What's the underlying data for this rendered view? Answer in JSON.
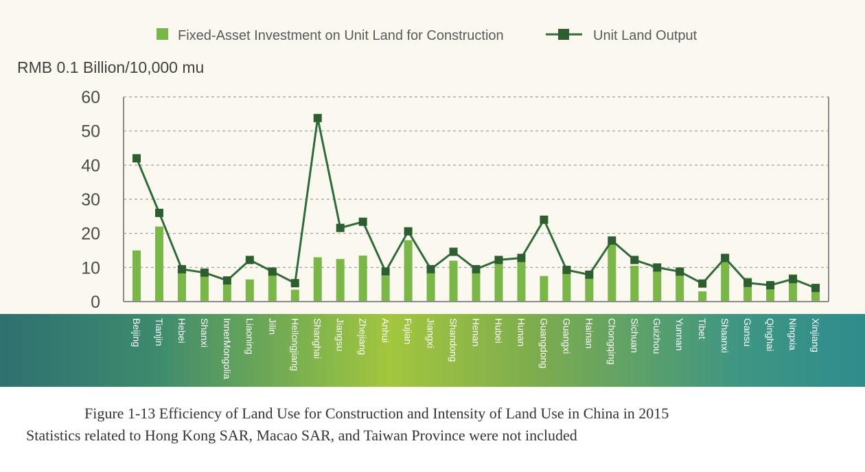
{
  "chart_data": {
    "type": "bar+line",
    "unit_label": "RMB 0.1 Billion/10,000 mu",
    "ylim": [
      0,
      60
    ],
    "yticks": [
      "0",
      "10",
      "20",
      "30",
      "40",
      "50",
      "60"
    ],
    "grid": true,
    "legend": {
      "bar": "Fixed-Asset Investment on Unit Land for Construction",
      "line": "Unit Land Output"
    },
    "categories": [
      "Beijing",
      "Tianjin",
      "Hebei",
      "Shanxi",
      "InnerMongolia",
      "Liaoning",
      "Jilin",
      "Heilongjiang",
      "Shanghai",
      "Jiangsu",
      "Zhejiang",
      "Anhui",
      "Fujian",
      "Jiangxi",
      "Shandong",
      "Henan",
      "Hubei",
      "Hunan",
      "Guangdong",
      "Guangxi",
      "Hainan",
      "Chongqing",
      "Sichuan",
      "Guizhou",
      "Yunnan",
      "Tibet",
      "Shaanxi",
      "Gansu",
      "Qinghai",
      "Ningxia",
      "Xinjiang"
    ],
    "series": [
      {
        "name": "Fixed-Asset Investment on Unit Land for Construction",
        "type": "bar",
        "values": [
          15,
          22,
          9,
          8,
          5,
          6.5,
          10,
          3.5,
          13,
          12.5,
          13.5,
          7.5,
          18,
          9,
          12,
          9,
          11,
          12,
          7.5,
          8.5,
          7,
          17,
          10.5,
          9,
          9.5,
          3,
          12,
          7,
          6,
          8,
          3
        ]
      },
      {
        "name": "Unit Land Output",
        "type": "line",
        "values": [
          42,
          26,
          9.5,
          8.5,
          6.2,
          12.2,
          8.8,
          5.4,
          53.8,
          21.6,
          23.4,
          8.8,
          20.6,
          9.5,
          14.6,
          9.5,
          12.2,
          12.8,
          24,
          9.3,
          7.9,
          17.9,
          12.2,
          10,
          8.8,
          5.3,
          12.8,
          5.5,
          4.8,
          6.6,
          4
        ]
      }
    ],
    "colors": {
      "bar": "#7ab648",
      "line": "#2e6b39",
      "marker": "#2e5e30",
      "grid": "#9a9a9a",
      "axis": "#8a8a8a"
    }
  },
  "caption": {
    "title": "Figure 1-13 Efficiency of Land Use for Construction and Intensity of Land Use in China in 2015",
    "note": "Statistics related to Hong Kong SAR, Macao SAR, and Taiwan Province were not included"
  }
}
